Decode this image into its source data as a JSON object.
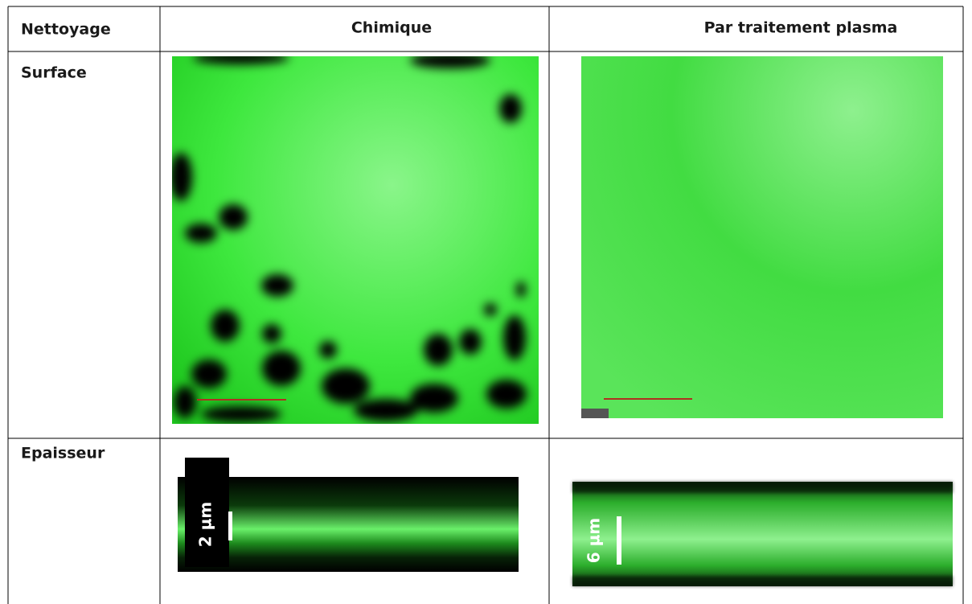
{
  "table": {
    "headers": [
      "Nettoyage",
      "Chimique",
      "Par traitement plasma"
    ],
    "rows": [
      [
        "Surface"
      ],
      [
        "Epaisseur"
      ]
    ]
  },
  "scale_labels": [
    "2 µm",
    "6 µm"
  ]
}
